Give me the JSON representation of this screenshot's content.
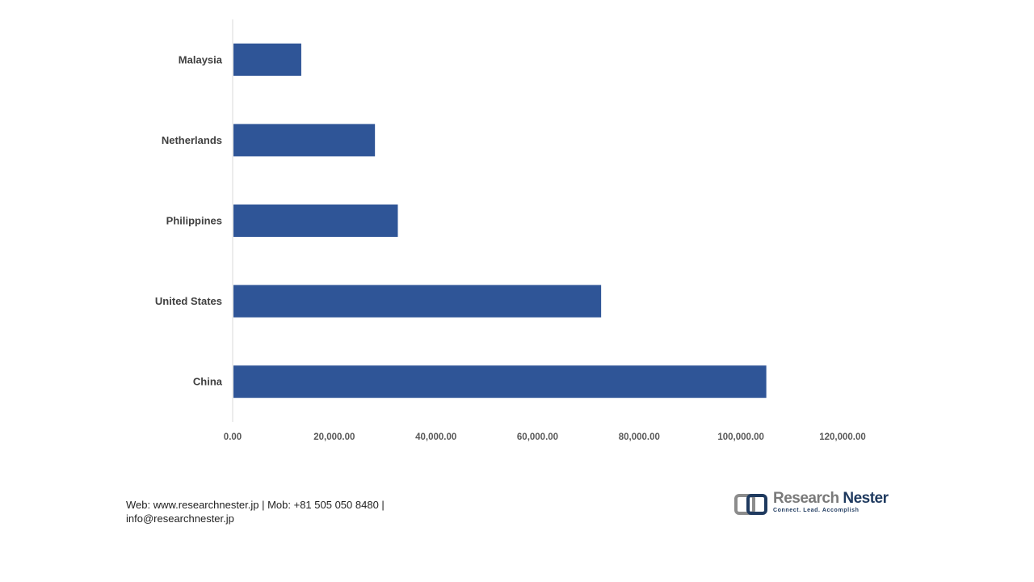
{
  "chart_data": {
    "type": "bar",
    "orientation": "horizontal",
    "categories": [
      "Malaysia",
      "Netherlands",
      "Philippines",
      "United States",
      "China"
    ],
    "values": [
      13500,
      28000,
      32500,
      72500,
      105000
    ],
    "xlim": [
      0,
      120000
    ],
    "x_ticks": [
      "0.00",
      "20,000.00",
      "40,000.00",
      "60,000.00",
      "80,000.00",
      "100,000.00",
      "120,000.00"
    ],
    "bar_color": "#2f5597",
    "grid": false
  },
  "footer": {
    "contact_line1": "Web: www.researchnester.jp | Mob: +81 505 050 8480 |",
    "contact_line2": "info@researchnester.jp"
  },
  "logo": {
    "name_part1": "Research",
    "name_part2": "Nester",
    "tagline": "Connect. Lead. Accomplish"
  }
}
